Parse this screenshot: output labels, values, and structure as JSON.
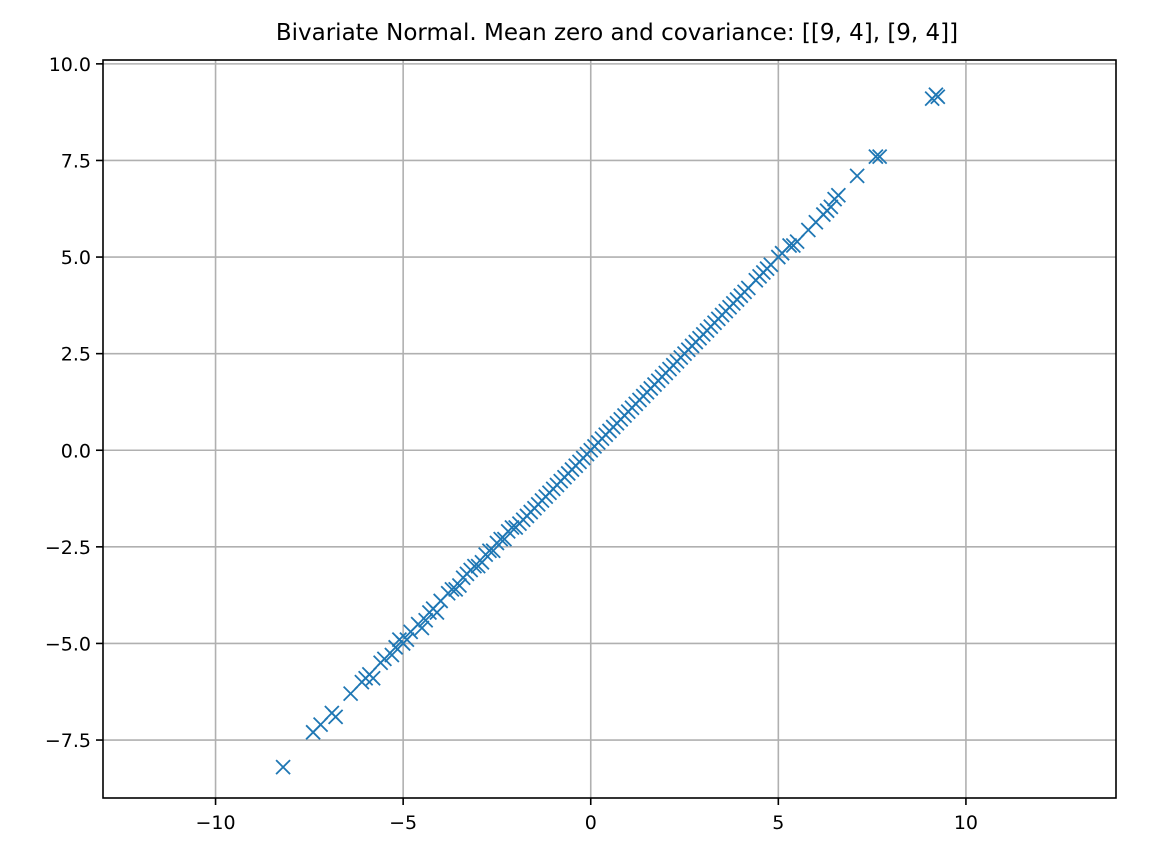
{
  "chart_data": {
    "type": "scatter",
    "title": "Bivariate Normal. Mean zero and covariance: [[9, 4], [9, 4]]",
    "xlabel": "",
    "ylabel": "",
    "xlim": [
      -13.0,
      14.0
    ],
    "ylim": [
      -9.0,
      10.1
    ],
    "grid": true,
    "marker": "x",
    "color": "#1f77b4",
    "x_ticks": [
      -10,
      -5,
      0,
      5,
      10
    ],
    "x_tick_labels": [
      "−10",
      "−5",
      "0",
      "5",
      "10"
    ],
    "y_ticks": [
      -7.5,
      -5.0,
      -2.5,
      0.0,
      2.5,
      5.0,
      7.5,
      10.0
    ],
    "y_tick_labels": [
      "−7.5",
      "−5.0",
      "−2.5",
      "0.0",
      "2.5",
      "5.0",
      "7.5",
      "10.0"
    ],
    "series": [
      {
        "points": [
          [
            -8.2,
            -8.2
          ],
          [
            -7.4,
            -7.3
          ],
          [
            -7.2,
            -7.1
          ],
          [
            -6.9,
            -6.8
          ],
          [
            -6.8,
            -6.9
          ],
          [
            -6.4,
            -6.3
          ],
          [
            -6.1,
            -6.0
          ],
          [
            -6.0,
            -5.9
          ],
          [
            -5.9,
            -5.8
          ],
          [
            -5.8,
            -5.9
          ],
          [
            -5.6,
            -5.5
          ],
          [
            -5.5,
            -5.4
          ],
          [
            -5.3,
            -5.3
          ],
          [
            -5.2,
            -5.1
          ],
          [
            -5.1,
            -4.9
          ],
          [
            -5.0,
            -5.0
          ],
          [
            -4.9,
            -4.9
          ],
          [
            -4.8,
            -4.7
          ],
          [
            -4.6,
            -4.5
          ],
          [
            -4.5,
            -4.6
          ],
          [
            -4.4,
            -4.4
          ],
          [
            -4.3,
            -4.2
          ],
          [
            -4.2,
            -4.1
          ],
          [
            -4.1,
            -4.2
          ],
          [
            -4.0,
            -3.9
          ],
          [
            -3.8,
            -3.7
          ],
          [
            -3.7,
            -3.6
          ],
          [
            -3.6,
            -3.6
          ],
          [
            -3.5,
            -3.5
          ],
          [
            -3.4,
            -3.3
          ],
          [
            -3.3,
            -3.2
          ],
          [
            -3.2,
            -3.1
          ],
          [
            -3.1,
            -3.0
          ],
          [
            -3.0,
            -3.0
          ],
          [
            -2.9,
            -2.9
          ],
          [
            -2.8,
            -2.7
          ],
          [
            -2.7,
            -2.6
          ],
          [
            -2.6,
            -2.6
          ],
          [
            -2.5,
            -2.4
          ],
          [
            -2.4,
            -2.3
          ],
          [
            -2.3,
            -2.3
          ],
          [
            -2.2,
            -2.1
          ],
          [
            -2.1,
            -2.0
          ],
          [
            -2.0,
            -2.0
          ],
          [
            -1.9,
            -1.9
          ],
          [
            -1.8,
            -1.8
          ],
          [
            -1.7,
            -1.7
          ],
          [
            -1.6,
            -1.6
          ],
          [
            -1.5,
            -1.5
          ],
          [
            -1.4,
            -1.4
          ],
          [
            -1.3,
            -1.3
          ],
          [
            -1.2,
            -1.2
          ],
          [
            -1.1,
            -1.1
          ],
          [
            -1.0,
            -1.0
          ],
          [
            -0.9,
            -0.9
          ],
          [
            -0.8,
            -0.8
          ],
          [
            -0.7,
            -0.7
          ],
          [
            -0.6,
            -0.6
          ],
          [
            -0.5,
            -0.5
          ],
          [
            -0.4,
            -0.4
          ],
          [
            -0.3,
            -0.3
          ],
          [
            -0.2,
            -0.2
          ],
          [
            -0.1,
            -0.1
          ],
          [
            0.0,
            0.0
          ],
          [
            0.1,
            0.1
          ],
          [
            0.2,
            0.2
          ],
          [
            0.3,
            0.3
          ],
          [
            0.4,
            0.4
          ],
          [
            0.5,
            0.5
          ],
          [
            0.6,
            0.6
          ],
          [
            0.7,
            0.7
          ],
          [
            0.8,
            0.8
          ],
          [
            0.9,
            0.9
          ],
          [
            1.0,
            1.0
          ],
          [
            1.1,
            1.1
          ],
          [
            1.2,
            1.2
          ],
          [
            1.3,
            1.3
          ],
          [
            1.4,
            1.4
          ],
          [
            1.5,
            1.5
          ],
          [
            1.6,
            1.6
          ],
          [
            1.7,
            1.7
          ],
          [
            1.8,
            1.8
          ],
          [
            1.9,
            1.9
          ],
          [
            2.0,
            2.0
          ],
          [
            2.1,
            2.1
          ],
          [
            2.2,
            2.2
          ],
          [
            2.3,
            2.3
          ],
          [
            2.4,
            2.4
          ],
          [
            2.5,
            2.5
          ],
          [
            2.6,
            2.6
          ],
          [
            2.7,
            2.7
          ],
          [
            2.8,
            2.8
          ],
          [
            2.9,
            2.9
          ],
          [
            3.0,
            3.0
          ],
          [
            3.1,
            3.1
          ],
          [
            3.2,
            3.2
          ],
          [
            3.3,
            3.3
          ],
          [
            3.4,
            3.4
          ],
          [
            3.5,
            3.5
          ],
          [
            3.6,
            3.6
          ],
          [
            3.7,
            3.7
          ],
          [
            3.8,
            3.8
          ],
          [
            3.9,
            3.9
          ],
          [
            4.0,
            4.0
          ],
          [
            4.1,
            4.1
          ],
          [
            4.2,
            4.2
          ],
          [
            4.4,
            4.4
          ],
          [
            4.5,
            4.5
          ],
          [
            4.6,
            4.6
          ],
          [
            4.7,
            4.7
          ],
          [
            4.8,
            4.8
          ],
          [
            5.0,
            5.0
          ],
          [
            5.1,
            5.1
          ],
          [
            5.3,
            5.3
          ],
          [
            5.4,
            5.3
          ],
          [
            5.5,
            5.4
          ],
          [
            5.8,
            5.7
          ],
          [
            6.0,
            5.9
          ],
          [
            6.2,
            6.1
          ],
          [
            6.3,
            6.2
          ],
          [
            6.4,
            6.3
          ],
          [
            6.5,
            6.5
          ],
          [
            6.6,
            6.6
          ],
          [
            7.1,
            7.1
          ],
          [
            7.6,
            7.6
          ],
          [
            7.7,
            7.6
          ],
          [
            9.1,
            9.1
          ],
          [
            9.2,
            9.2
          ],
          [
            9.25,
            9.15
          ]
        ]
      }
    ]
  }
}
